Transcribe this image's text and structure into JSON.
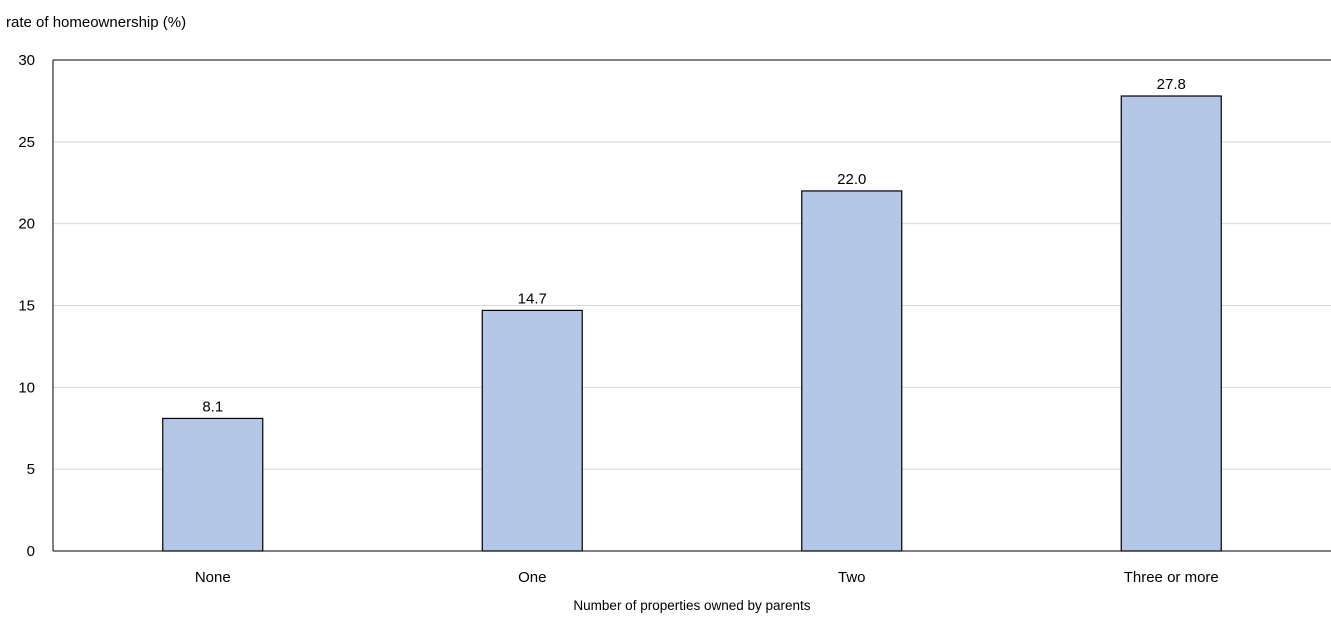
{
  "chart_data": {
    "type": "bar",
    "categories": [
      "None",
      "One",
      "Two",
      "Three or more"
    ],
    "values": [
      8.1,
      14.7,
      22.0,
      27.8
    ],
    "value_labels": [
      "8.1",
      "14.7",
      "22.0",
      "27.8"
    ],
    "ylabel": "rate of homeownership (%)",
    "xlabel": "Number of properties owned by parents",
    "ylim": [
      0,
      30
    ],
    "yticks": [
      0,
      5,
      10,
      15,
      20,
      25,
      30
    ],
    "grid": true,
    "legend": "none",
    "colors": {
      "bar_fill": "#b4c7e7",
      "bar_stroke": "#000000",
      "grid": "#d9d9d9",
      "axis": "#000000"
    }
  }
}
